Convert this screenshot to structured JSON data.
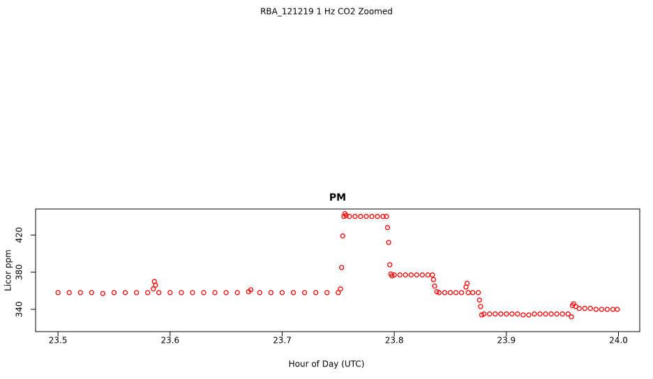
{
  "page_title": "RBA_121219  1 Hz CO2 Zoomed",
  "chart_data": {
    "type": "scatter",
    "title": "PM",
    "x_label": "Hour of Day (UTC)",
    "y_label": "Licor ppm",
    "color": "#ff0000",
    "marker": "open-circle",
    "xlim": [
      23.48,
      24.019
    ],
    "ylim": [
      316,
      448
    ],
    "xticks": [
      23.5,
      23.6,
      23.7,
      23.8,
      23.9,
      {
        "value": 24,
        "label": "24.0"
      }
    ],
    "yticks": [
      340,
      380,
      420
    ],
    "x": [
      23.5,
      23.51,
      23.52,
      23.53,
      23.54,
      23.55,
      23.56,
      23.57,
      23.58,
      23.585,
      23.586,
      23.587,
      23.59,
      23.6,
      23.61,
      23.62,
      23.63,
      23.64,
      23.65,
      23.66,
      23.67,
      23.672,
      23.68,
      23.69,
      23.7,
      23.71,
      23.72,
      23.73,
      23.74,
      23.75,
      23.752,
      23.753,
      23.754,
      23.755,
      23.756,
      23.757,
      23.76,
      23.765,
      23.77,
      23.775,
      23.78,
      23.785,
      23.79,
      23.793,
      23.794,
      23.795,
      23.796,
      23.797,
      23.798,
      23.8,
      23.805,
      23.81,
      23.815,
      23.82,
      23.825,
      23.83,
      23.834,
      23.835,
      23.836,
      23.838,
      23.84,
      23.845,
      23.85,
      23.855,
      23.86,
      23.864,
      23.865,
      23.866,
      23.87,
      23.875,
      23.876,
      23.877,
      23.878,
      23.88,
      23.885,
      23.89,
      23.895,
      23.9,
      23.905,
      23.91,
      23.915,
      23.92,
      23.925,
      23.93,
      23.935,
      23.94,
      23.945,
      23.95,
      23.955,
      23.958,
      23.959,
      23.96,
      23.962,
      23.965,
      23.97,
      23.975,
      23.98,
      23.985,
      23.99,
      23.995,
      23.999
    ],
    "values": [
      358,
      358,
      358,
      358,
      357,
      358,
      358,
      358,
      358,
      362,
      370,
      366,
      358,
      358,
      358,
      358,
      358,
      358,
      358,
      358,
      359,
      361,
      358,
      358,
      358,
      358,
      358,
      358,
      358,
      358,
      362,
      385,
      419,
      440,
      443,
      441,
      440,
      440,
      440,
      440,
      440,
      440,
      440,
      440,
      428,
      412,
      388,
      378,
      376,
      377,
      377,
      377,
      377,
      377,
      377,
      377,
      377,
      372,
      365,
      359,
      358,
      358,
      358,
      358,
      358,
      364,
      368,
      358,
      358,
      358,
      350,
      343,
      334,
      335,
      335,
      335,
      335,
      335,
      335,
      335,
      334,
      334,
      335,
      335,
      335,
      335,
      335,
      335,
      335,
      332,
      344,
      346,
      343,
      341,
      341,
      341,
      340,
      340,
      340,
      340,
      340
    ]
  }
}
